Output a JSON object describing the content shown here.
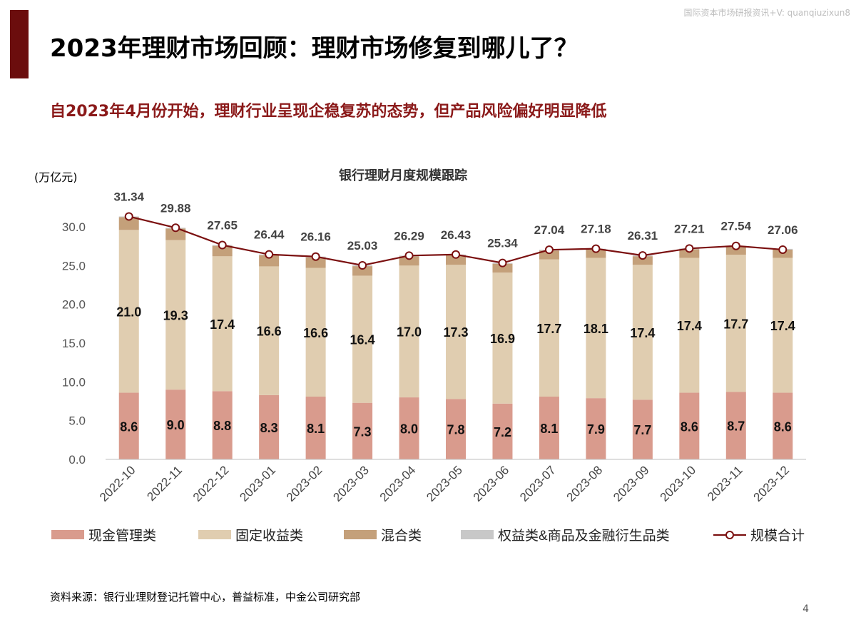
{
  "header": {
    "watermark": "国际资本市场研报资讯+V: quanqiuzixun8",
    "title": "2023年理财市场回顾：理财市场修复到哪儿了？",
    "subtitle": "自2023年4月份开始，理财行业呈现企稳复苏的态势，但产品风险偏好明显降低"
  },
  "footer": {
    "source": "资料来源：银行业理财登记托管中心，普益标准，中金公司研究部",
    "page": "4"
  },
  "chart_data": {
    "type": "bar",
    "title": "银行理财月度规模跟踪",
    "unit_label": "(万亿元)",
    "categories": [
      "2022-10",
      "2022-11",
      "2022-12",
      "2023-01",
      "2023-02",
      "2023-03",
      "2023-04",
      "2023-05",
      "2023-06",
      "2023-07",
      "2023-08",
      "2023-09",
      "2023-10",
      "2023-11",
      "2023-12"
    ],
    "ylim": [
      0,
      30
    ],
    "yticks": [
      "0.0",
      "5.0",
      "10.0",
      "15.0",
      "20.0",
      "25.0",
      "30.0"
    ],
    "legend_position": "bottom",
    "series": [
      {
        "name": "现金管理类",
        "kind": "bar",
        "color": "#d99b8d",
        "values": [
          8.6,
          9.0,
          8.8,
          8.3,
          8.1,
          7.3,
          8.0,
          7.8,
          7.2,
          8.1,
          7.9,
          7.7,
          8.6,
          8.7,
          8.6
        ]
      },
      {
        "name": "固定收益类",
        "kind": "bar",
        "color": "#e0cdb0",
        "values": [
          21.0,
          19.3,
          17.4,
          16.6,
          16.6,
          16.4,
          17.0,
          17.3,
          16.9,
          17.7,
          18.1,
          17.4,
          17.4,
          17.7,
          17.4
        ]
      },
      {
        "name": "混合类",
        "kind": "bar",
        "color": "#c4a07a",
        "values": [
          1.64,
          1.48,
          1.35,
          1.44,
          1.36,
          1.23,
          1.19,
          1.23,
          1.14,
          1.14,
          1.08,
          1.11,
          1.11,
          1.04,
          1.06
        ]
      },
      {
        "name": "权益类&商品及金融衍生品类",
        "kind": "bar",
        "color": "#c8c8c8",
        "values": [
          0.1,
          0.1,
          0.1,
          0.1,
          0.1,
          0.1,
          0.1,
          0.1,
          0.1,
          0.1,
          0.1,
          0.1,
          0.1,
          0.1,
          0.1
        ]
      },
      {
        "name": "规模合计",
        "kind": "line",
        "color": "#7b1010",
        "values": [
          31.34,
          29.88,
          27.65,
          26.44,
          26.16,
          25.03,
          26.29,
          26.43,
          25.34,
          27.04,
          27.18,
          26.31,
          27.21,
          27.54,
          27.06
        ]
      }
    ],
    "bar_labels": {
      "现金管理类": [
        "8.6",
        "9.0",
        "8.8",
        "8.3",
        "8.1",
        "7.3",
        "8.0",
        "7.8",
        "7.2",
        "8.1",
        "7.9",
        "7.7",
        "8.6",
        "8.7",
        "8.6"
      ],
      "固定收益类": [
        "21.0",
        "19.3",
        "17.4",
        "16.6",
        "16.6",
        "16.4",
        "17.0",
        "17.3",
        "16.9",
        "17.7",
        "18.1",
        "17.4",
        "17.4",
        "17.7",
        "17.4"
      ]
    },
    "total_labels": [
      "31.34",
      "29.88",
      "27.65",
      "26.44",
      "26.16",
      "25.03",
      "26.29",
      "26.43",
      "25.34",
      "27.04",
      "27.18",
      "26.31",
      "27.21",
      "27.54",
      "27.06"
    ]
  }
}
